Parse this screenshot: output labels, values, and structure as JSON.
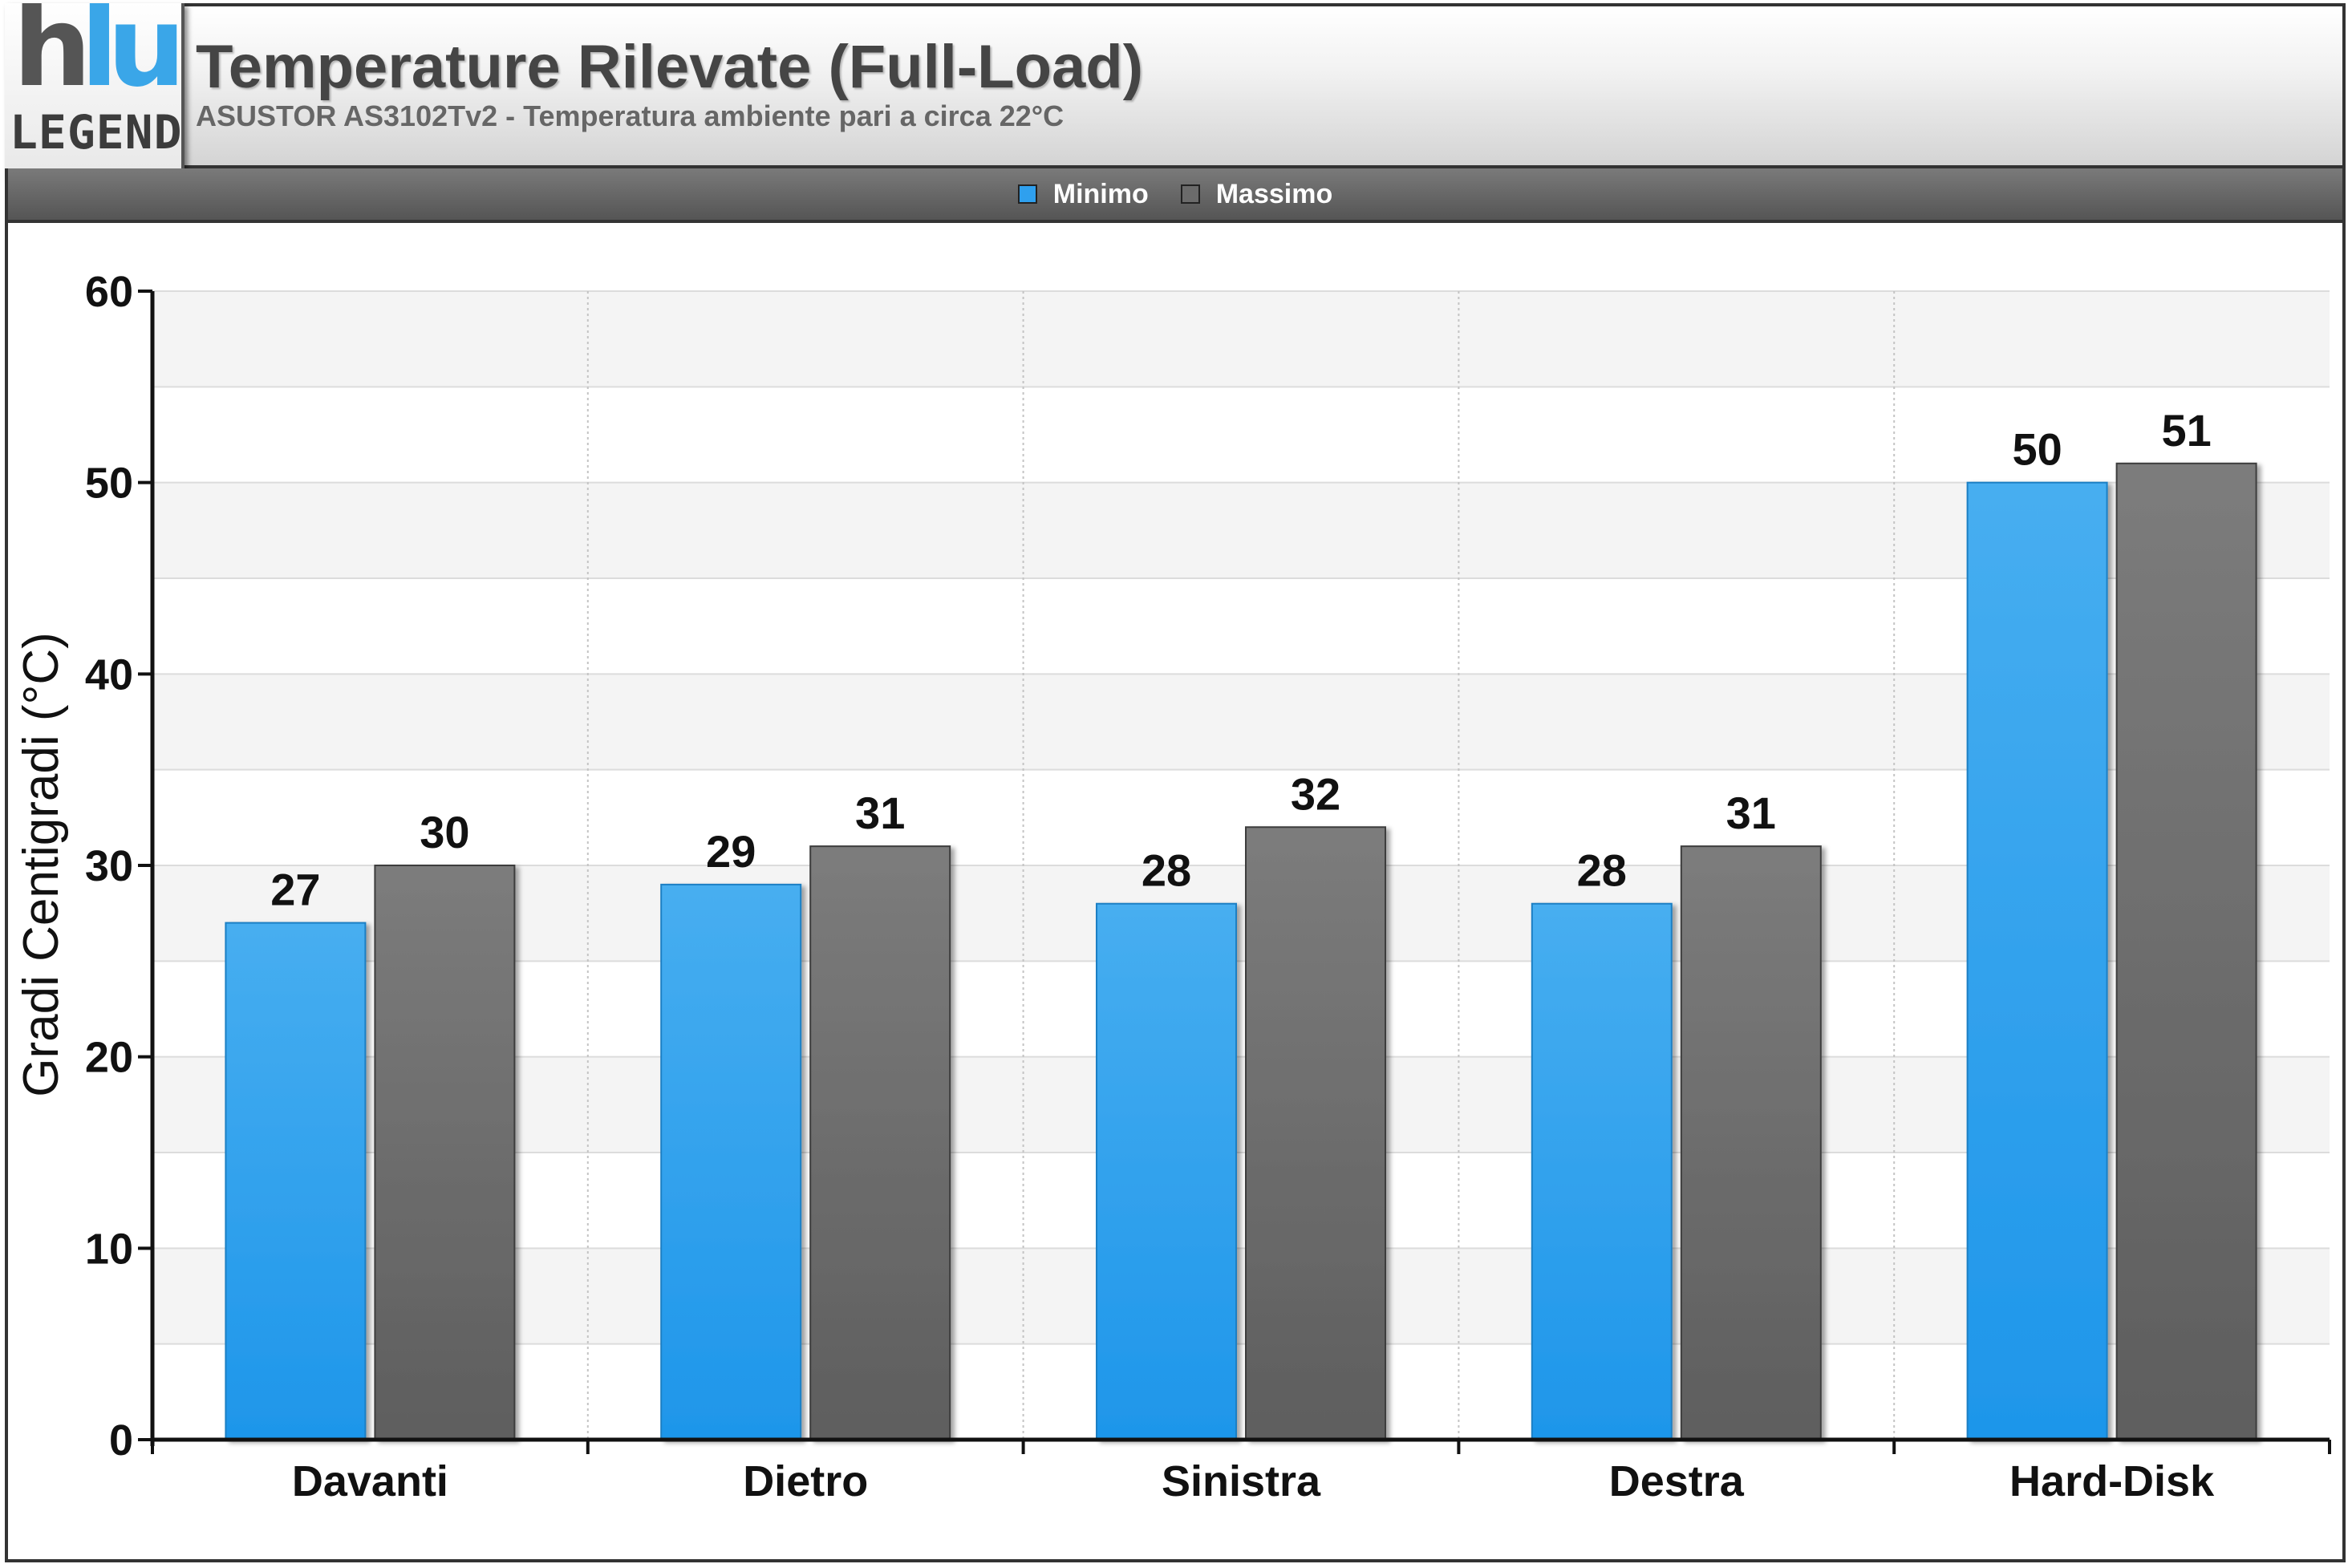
{
  "header": {
    "title": "Temperature Rilevate (Full-Load)",
    "subtitle": "ASUSTOR AS3102Tv2 - Temperatura ambiente pari a circa 22°C",
    "logo_text": "LEGEND"
  },
  "colors": {
    "minimo": "#2fa0ee",
    "massimo": "#6b6b6b"
  },
  "chart_data": {
    "type": "bar",
    "title": "Temperature Rilevate (Full-Load)",
    "subtitle": "ASUSTOR AS3102Tv2 - Temperatura ambiente pari a circa 22°C",
    "categories": [
      "Davanti",
      "Dietro",
      "Sinistra",
      "Destra",
      "Hard-Disk"
    ],
    "series": [
      {
        "name": "Minimo",
        "values": [
          27,
          29,
          28,
          28,
          50
        ]
      },
      {
        "name": "Massimo",
        "values": [
          30,
          31,
          32,
          31,
          51
        ]
      }
    ],
    "xlabel": "",
    "ylabel": "Gradi Centigradi (°C)",
    "ylim": [
      0,
      60
    ],
    "yticks": [
      0,
      10,
      20,
      30,
      40,
      50,
      60
    ],
    "legend_position": "top-center",
    "grid": true,
    "data_labels": true
  }
}
